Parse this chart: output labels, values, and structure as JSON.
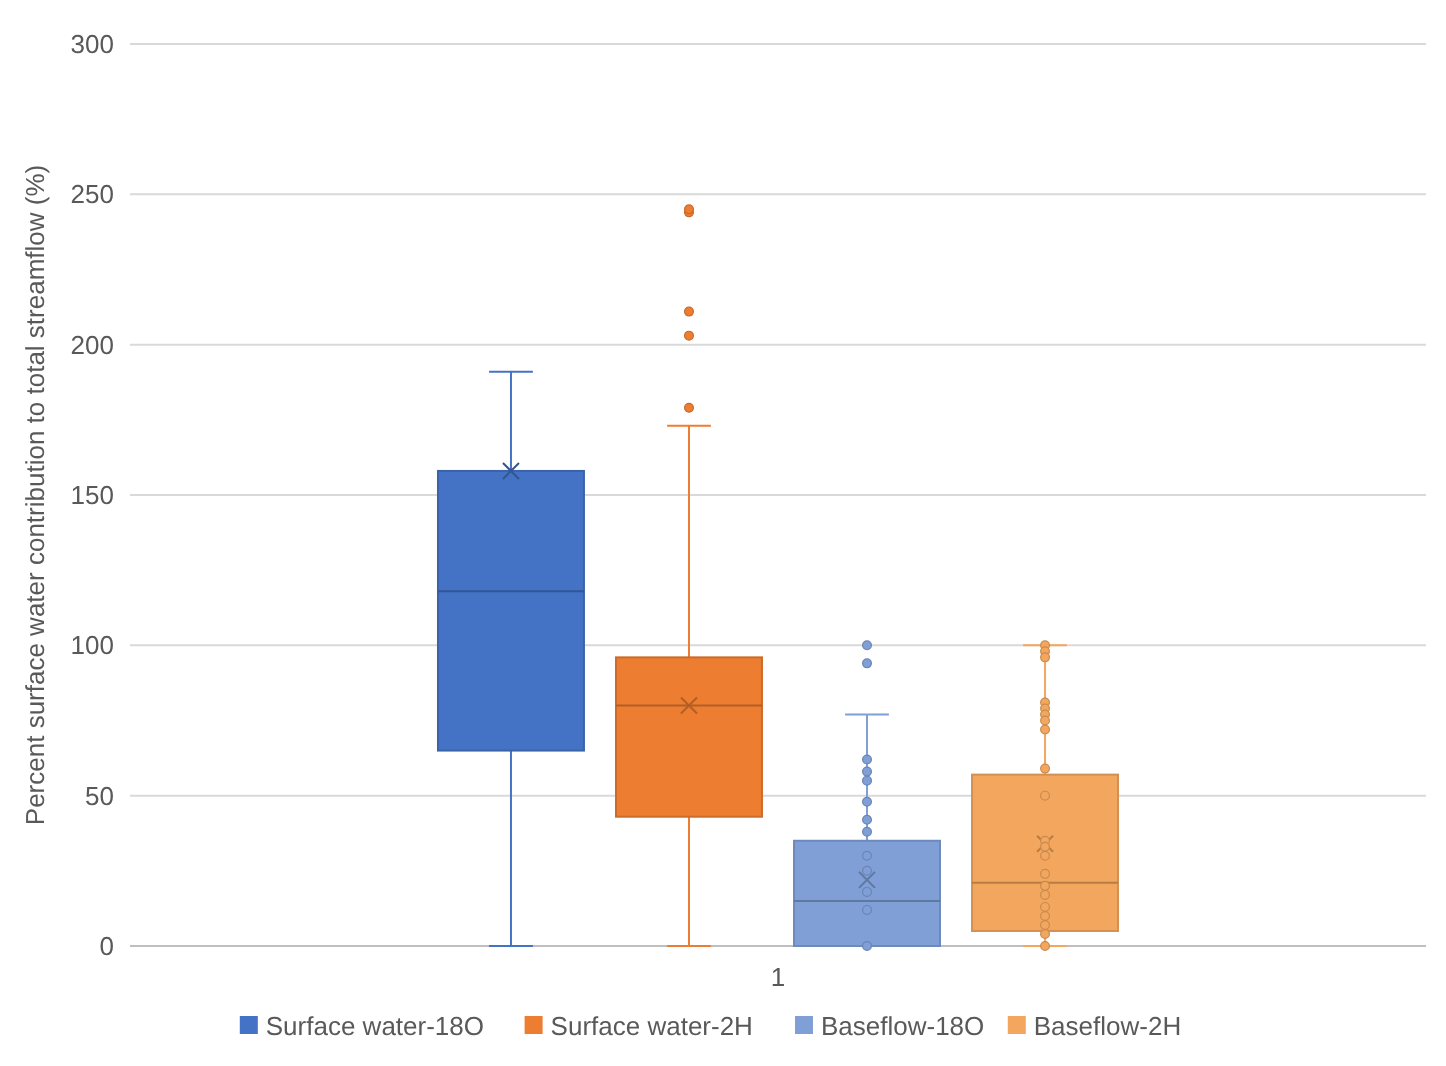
{
  "chart_data": {
    "type": "box",
    "ylabel": "Percent surface water contribution to total streamflow (%)",
    "categories": [
      "1"
    ],
    "ylim": [
      0,
      300
    ],
    "yticks": [
      0,
      50,
      100,
      150,
      200,
      250,
      300
    ],
    "grid": "y",
    "legend": "bottom",
    "series": [
      {
        "name": "Surface water-18O",
        "color": "#4472c4",
        "boxes": [
          {
            "low": 0,
            "q1": 65,
            "median": 118,
            "q3": 158,
            "high": 191,
            "mean": 158
          }
        ]
      },
      {
        "name": "Surface water-2H",
        "color": "#ed7d31",
        "boxes": [
          {
            "low": 0,
            "q1": 43,
            "median": 80,
            "q3": 96,
            "high": 173,
            "mean": 80,
            "outliers": [
              179,
              203,
              211,
              244,
              245
            ]
          }
        ]
      },
      {
        "name": "Baseflow-18O",
        "color": "#7f9fd6",
        "boxes": [
          {
            "low": 0,
            "q1": 0,
            "median": 15,
            "q3": 35,
            "high": 77,
            "mean": 22,
            "outliers": [
              100,
              94,
              62,
              58,
              55,
              48,
              42,
              38,
              30,
              25,
              18,
              12,
              0
            ]
          }
        ]
      },
      {
        "name": "Baseflow-2H",
        "color": "#f2a65e",
        "boxes": [
          {
            "low": 0,
            "q1": 5,
            "median": 21,
            "q3": 57,
            "high": 100,
            "mean": 34,
            "outliers": [
              100,
              98,
              96,
              81,
              79,
              77,
              75,
              72,
              59,
              50,
              35,
              33,
              30,
              24,
              20,
              17,
              13,
              10,
              7,
              4,
              0
            ]
          }
        ]
      }
    ]
  }
}
